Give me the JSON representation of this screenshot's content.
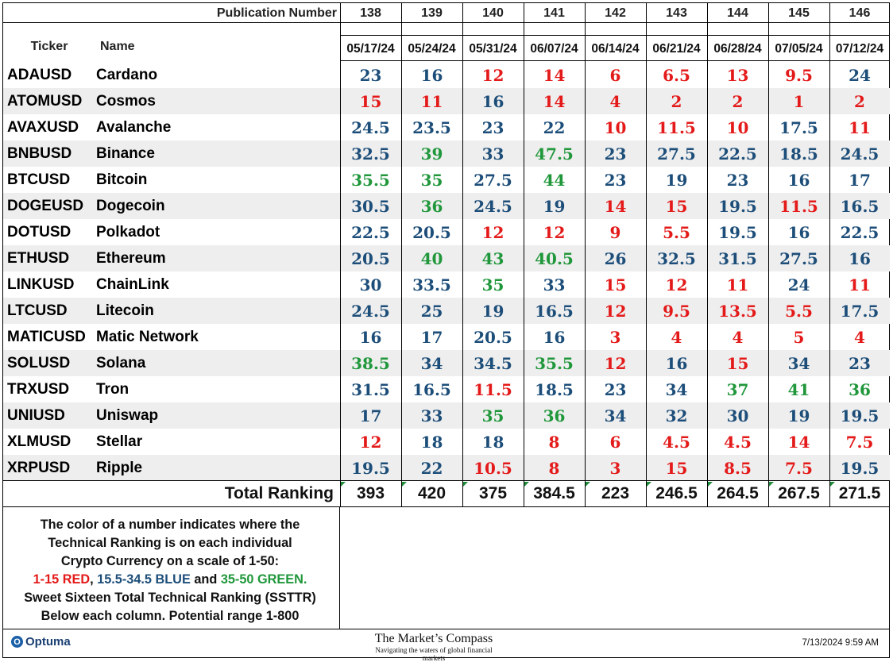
{
  "header": {
    "publication_label": "Publication Number",
    "ticker_label": "Ticker",
    "name_label": "Name",
    "publications": [
      "138",
      "139",
      "140",
      "141",
      "142",
      "143",
      "144",
      "145",
      "146"
    ],
    "dates": [
      "05/17/24",
      "05/24/24",
      "05/31/24",
      "06/07/24",
      "06/14/24",
      "06/21/24",
      "06/28/24",
      "07/05/24",
      "07/12/24"
    ]
  },
  "colors": {
    "red": "#e41a1a",
    "blue": "#1d4e79",
    "green": "#20973b"
  },
  "rows": [
    {
      "ticker": "ADAUSD",
      "name": "Cardano",
      "values": [
        "23",
        "16",
        "12",
        "14",
        "6",
        "6.5",
        "13",
        "9.5",
        "24"
      ]
    },
    {
      "ticker": "ATOMUSD",
      "name": "Cosmos",
      "values": [
        "15",
        "11",
        "16",
        "14",
        "4",
        "2",
        "2",
        "1",
        "2"
      ]
    },
    {
      "ticker": "AVAXUSD",
      "name": "Avalanche",
      "values": [
        "24.5",
        "23.5",
        "23",
        "22",
        "10",
        "11.5",
        "10",
        "17.5",
        "11"
      ]
    },
    {
      "ticker": "BNBUSD",
      "name": "Binance",
      "values": [
        "32.5",
        "39",
        "33",
        "47.5",
        "23",
        "27.5",
        "22.5",
        "18.5",
        "24.5"
      ]
    },
    {
      "ticker": "BTCUSD",
      "name": "Bitcoin",
      "values": [
        "35.5",
        "35",
        "27.5",
        "44",
        "23",
        "19",
        "23",
        "16",
        "17"
      ]
    },
    {
      "ticker": "DOGEUSD",
      "name": "Dogecoin",
      "values": [
        "30.5",
        "36",
        "24.5",
        "19",
        "14",
        "15",
        "19.5",
        "11.5",
        "16.5"
      ]
    },
    {
      "ticker": "DOTUSD",
      "name": "Polkadot",
      "values": [
        "22.5",
        "20.5",
        "12",
        "12",
        "9",
        "5.5",
        "19.5",
        "16",
        "22.5"
      ]
    },
    {
      "ticker": "ETHUSD",
      "name": "Ethereum",
      "values": [
        "20.5",
        "40",
        "43",
        "40.5",
        "26",
        "32.5",
        "31.5",
        "27.5",
        "16"
      ]
    },
    {
      "ticker": "LINKUSD",
      "name": "ChainLink",
      "values": [
        "30",
        "33.5",
        "35",
        "33",
        "15",
        "12",
        "11",
        "24",
        "11"
      ]
    },
    {
      "ticker": "LTCUSD",
      "name": "Litecoin",
      "values": [
        "24.5",
        "25",
        "19",
        "16.5",
        "12",
        "9.5",
        "13.5",
        "5.5",
        "17.5"
      ]
    },
    {
      "ticker": "MATICUSD",
      "name": "Matic Network",
      "values": [
        "16",
        "17",
        "20.5",
        "16",
        "3",
        "4",
        "4",
        "5",
        "4"
      ]
    },
    {
      "ticker": "SOLUSD",
      "name": "Solana",
      "values": [
        "38.5",
        "34",
        "34.5",
        "35.5",
        "12",
        "16",
        "15",
        "34",
        "23"
      ]
    },
    {
      "ticker": "TRXUSD",
      "name": "Tron",
      "values": [
        "31.5",
        "16.5",
        "11.5",
        "18.5",
        "23",
        "34",
        "37",
        "41",
        "36"
      ]
    },
    {
      "ticker": "UNIUSD",
      "name": "Uniswap",
      "values": [
        "17",
        "33",
        "35",
        "36",
        "34",
        "32",
        "30",
        "19",
        "19.5"
      ]
    },
    {
      "ticker": "XLMUSD",
      "name": "Stellar",
      "values": [
        "12",
        "18",
        "18",
        "8",
        "6",
        "4.5",
        "4.5",
        "14",
        "7.5"
      ]
    },
    {
      "ticker": "XRPUSD",
      "name": "Ripple",
      "values": [
        "19.5",
        "22",
        "10.5",
        "8",
        "3",
        "15",
        "8.5",
        "7.5",
        "19.5"
      ]
    }
  ],
  "total": {
    "label": "Total Ranking",
    "values": [
      "393",
      "420",
      "375",
      "384.5",
      "223",
      "246.5",
      "264.5",
      "267.5",
      "271.5"
    ]
  },
  "note": {
    "line1": "The color of a number indicates where the",
    "line2": "Technical Ranking is on each individual",
    "line3": "Crypto Currency on a scale of 1-50:",
    "red_text": "1-15 RED",
    "sep1": ", ",
    "blue_text": "15.5-34.5 BLUE",
    "sep2": " and ",
    "green_text": "35-50 GREEN.",
    "line5": "Sweet Sixteen Total Technical Ranking (SSTTR)",
    "line6": "Below each column.   Potential range 1-800"
  },
  "footer": {
    "logo_icon": "optuma-logo-icon",
    "logo_text": "Optuma",
    "compass_title": "The Market’s Compass",
    "compass_subtitle": "Navigating the waters of global financial markets",
    "timestamp": "7/13/2024 9:59 AM"
  }
}
